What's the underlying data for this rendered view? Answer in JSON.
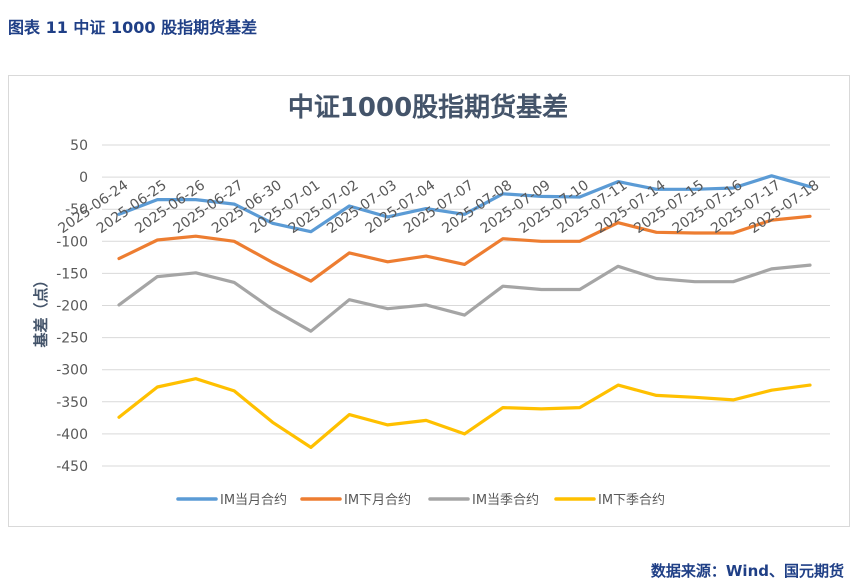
{
  "caption": "图表 11  中证 1000 股指期货基差",
  "source": "数据来源：Wind、国元期货",
  "chart_data": {
    "type": "line",
    "title": "中证1000股指期货基差",
    "xlabel": "",
    "ylabel": "基差（点）",
    "ylim": [
      -450,
      50
    ],
    "yticks": [
      50,
      0,
      -50,
      -100,
      -150,
      -200,
      -250,
      -300,
      -350,
      -400,
      -450
    ],
    "grid": true,
    "legend_position": "bottom",
    "categories": [
      "2025-06-24",
      "2025-06-25",
      "2025-06-26",
      "2025-06-27",
      "2025-06-30",
      "2025-07-01",
      "2025-07-02",
      "2025-07-03",
      "2025-07-04",
      "2025-07-07",
      "2025-07-08",
      "2025-07-09",
      "2025-07-10",
      "2025-07-11",
      "2025-07-14",
      "2025-07-15",
      "2025-07-16",
      "2025-07-17",
      "2025-07-18"
    ],
    "series": [
      {
        "name": "IM当月合约",
        "color": "#5b9bd5",
        "values": [
          -58,
          -35,
          -35,
          -42,
          -72,
          -85,
          -45,
          -62,
          -49,
          -58,
          -26,
          -30,
          -31,
          -7,
          -19,
          -19,
          -17,
          2,
          -15
        ]
      },
      {
        "name": "IM下月合约",
        "color": "#ed7d31",
        "values": [
          -127,
          -98,
          -92,
          -100,
          -133,
          -162,
          -118,
          -132,
          -123,
          -136,
          -96,
          -100,
          -100,
          -71,
          -86,
          -87,
          -87,
          -67,
          -61
        ]
      },
      {
        "name": "IM当季合约",
        "color": "#a5a5a5",
        "values": [
          -199,
          -155,
          -149,
          -164,
          -206,
          -240,
          -191,
          -205,
          -199,
          -215,
          -170,
          -175,
          -175,
          -139,
          -158,
          -163,
          -163,
          -143,
          -137
        ]
      },
      {
        "name": "IM下季合约",
        "color": "#ffc000",
        "values": [
          -374,
          -327,
          -314,
          -333,
          -382,
          -421,
          -370,
          -386,
          -379,
          -400,
          -359,
          -361,
          -359,
          -324,
          -340,
          -343,
          -347,
          -332,
          -324
        ]
      }
    ]
  }
}
